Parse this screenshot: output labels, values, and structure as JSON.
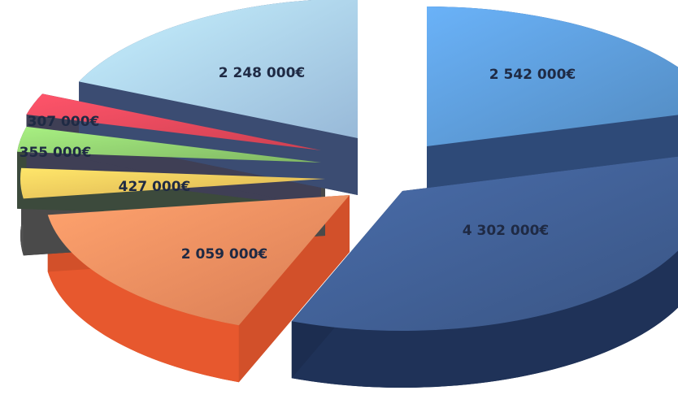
{
  "chart_data": {
    "type": "pie",
    "style": "3d-exploded",
    "title": "",
    "slices": [
      {
        "label": "2 542 000€",
        "value": 2542000,
        "color": "#5a97d2",
        "side_color": "#2e4a78"
      },
      {
        "label": "4 302 000€",
        "value": 4302000,
        "color": "#3f5d92",
        "side_color": "#1c2d50"
      },
      {
        "label": "2 059 000€",
        "value": 2059000,
        "color": "#f08a5d",
        "side_color": "#d2502a"
      },
      {
        "label": "427 000€",
        "value": 427000,
        "color": "#f2c35a",
        "side_color": "#4a4a4a"
      },
      {
        "label": "355 000€",
        "value": 355000,
        "color": "#8ecb6e",
        "side_color": "#3c4a3c"
      },
      {
        "label": "307 000€",
        "value": 307000,
        "color": "#e5475a",
        "side_color": "#3f3f55"
      },
      {
        "label": "2 248 000€",
        "value": 2248000,
        "color": "#a9cdf0",
        "side_color": "#3b4c72"
      }
    ]
  }
}
